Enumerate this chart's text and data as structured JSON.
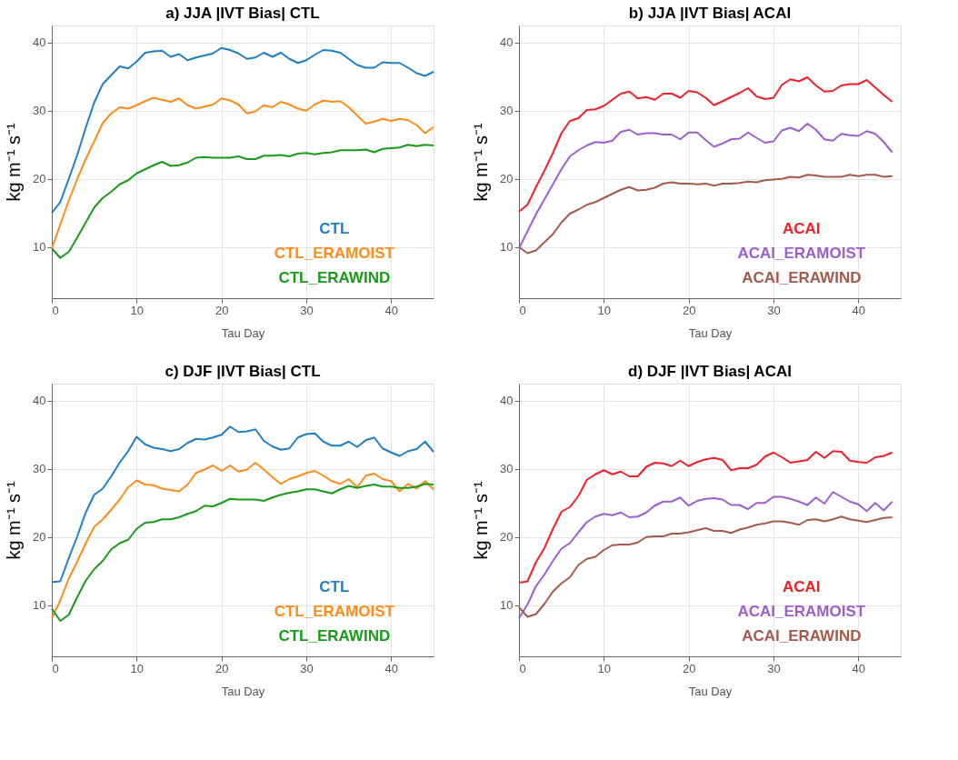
{
  "chart_data": [
    {
      "type": "line",
      "title": "a) JJA |IVT Bias| CTL",
      "xlabel": "Tau Day",
      "ylabel": "kg m⁻¹ s⁻¹",
      "xlim": [
        0,
        45
      ],
      "xticks": [
        0,
        10,
        20,
        30,
        40
      ],
      "ylim": [
        2.5,
        42.5
      ],
      "yticks": [
        10,
        20,
        30,
        40
      ],
      "grid": true,
      "legend": "bottom right",
      "x": [
        0,
        1,
        2,
        3,
        4,
        5,
        6,
        7,
        8,
        9,
        10,
        11,
        12,
        13,
        14,
        15,
        16,
        17,
        18,
        19,
        20,
        21,
        22,
        23,
        24,
        25,
        26,
        27,
        28,
        29,
        30,
        31,
        32,
        33,
        34,
        35,
        36,
        37,
        38,
        39,
        40,
        41,
        42,
        43,
        44,
        45
      ],
      "series": [
        {
          "name": "CTL",
          "color": "#1f7fc4",
          "values": [
            15,
            16.6,
            20,
            23.5,
            27.5,
            31.2,
            33.9,
            35.2,
            36.5,
            36.2,
            37.2,
            38.5,
            38.7,
            38.8,
            37.9,
            38.3,
            37.4,
            37.8,
            38.1,
            38.4,
            39.2,
            38.9,
            38.4,
            37.6,
            37.8,
            38.5,
            37.9,
            38.5,
            37.6,
            37.0,
            37.4,
            38.2,
            38.9,
            38.8,
            38.5,
            37.6,
            36.7,
            36.3,
            36.3,
            37.1,
            37.0,
            37.0,
            36.3,
            35.5,
            35.1,
            35.7
          ]
        },
        {
          "name": "CTL_ERAMOIST",
          "color": "#ff8c1a",
          "values": [
            9.8,
            13.3,
            16.8,
            20,
            22.9,
            25.5,
            28.2,
            29.6,
            30.5,
            30.3,
            30.8,
            31.4,
            31.9,
            31.6,
            31.3,
            31.8,
            30.8,
            30.3,
            30.6,
            30.9,
            31.8,
            31.5,
            30.9,
            29.6,
            29.9,
            30.8,
            30.5,
            31.3,
            30.9,
            30.3,
            30.0,
            30.9,
            31.5,
            31.3,
            31.4,
            30.5,
            29.3,
            28.1,
            28.4,
            28.8,
            28.5,
            28.8,
            28.6,
            27.9,
            26.7,
            27.6
          ]
        },
        {
          "name": "CTL_ERAWIND",
          "color": "#1a9a1a",
          "values": [
            9.8,
            8.4,
            9.3,
            11.4,
            13.6,
            15.8,
            17.2,
            18.1,
            19.2,
            19.8,
            20.8,
            21.4,
            22.0,
            22.5,
            21.9,
            22.0,
            22.4,
            23.1,
            23.2,
            23.1,
            23.1,
            23.1,
            23.3,
            22.9,
            22.9,
            23.4,
            23.4,
            23.5,
            23.3,
            23.7,
            23.8,
            23.6,
            23.8,
            23.9,
            24.2,
            24.2,
            24.2,
            24.3,
            23.9,
            24.4,
            24.5,
            24.6,
            25.0,
            24.8,
            25.0,
            24.9
          ]
        }
      ]
    },
    {
      "type": "line",
      "title": "b) JJA |IVT Bias| ACAI",
      "xlabel": "Tau Day",
      "ylabel": "kg m⁻¹ s⁻¹",
      "xlim": [
        0,
        45
      ],
      "xticks": [
        0,
        10,
        20,
        30,
        40
      ],
      "ylim": [
        2.5,
        42.5
      ],
      "yticks": [
        10,
        20,
        30,
        40
      ],
      "grid": true,
      "legend": "bottom right",
      "x": [
        0,
        1,
        2,
        3,
        4,
        5,
        6,
        7,
        8,
        9,
        10,
        11,
        12,
        13,
        14,
        15,
        16,
        17,
        18,
        19,
        20,
        21,
        22,
        23,
        24,
        25,
        26,
        27,
        28,
        29,
        30,
        31,
        32,
        33,
        34,
        35,
        36,
        37,
        38,
        39,
        40,
        41,
        42,
        43,
        44
      ],
      "series": [
        {
          "name": "ACAI",
          "color": "#f0202a",
          "values": [
            15.2,
            16.2,
            18.8,
            21.2,
            23.8,
            26.7,
            28.5,
            28.9,
            30.1,
            30.2,
            30.7,
            31.6,
            32.5,
            32.8,
            31.8,
            32.0,
            31.6,
            32.5,
            32.5,
            31.9,
            32.9,
            32.7,
            31.9,
            30.8,
            31.4,
            32.0,
            32.6,
            33.3,
            32.1,
            31.7,
            31.9,
            33.8,
            34.6,
            34.3,
            34.9,
            33.7,
            32.8,
            32.9,
            33.7,
            33.9,
            33.9,
            34.5,
            33.4,
            32.3,
            31.3
          ]
        },
        {
          "name": "ACAI_ERAMOIST",
          "color": "#9b5fd0",
          "values": [
            9.8,
            12.3,
            14.8,
            17,
            19.2,
            21.4,
            23.3,
            24.2,
            24.9,
            25.4,
            25.3,
            25.6,
            26.9,
            27.2,
            26.5,
            26.7,
            26.7,
            26.5,
            26.5,
            25.8,
            26.8,
            26.8,
            25.7,
            24.7,
            25.2,
            25.8,
            25.9,
            26.8,
            26.0,
            25.3,
            25.5,
            27.1,
            27.5,
            27.0,
            28.1,
            27.2,
            25.8,
            25.6,
            26.6,
            26.4,
            26.3,
            27.0,
            26.6,
            25.4,
            23.9
          ]
        },
        {
          "name": "ACAI_ERAWIND",
          "color": "#a65a4c",
          "values": [
            10,
            9.1,
            9.5,
            10.7,
            11.9,
            13.6,
            14.9,
            15.5,
            16.2,
            16.6,
            17.2,
            17.8,
            18.4,
            18.8,
            18.3,
            18.4,
            18.7,
            19.3,
            19.5,
            19.3,
            19.3,
            19.2,
            19.3,
            19.0,
            19.3,
            19.3,
            19.4,
            19.6,
            19.5,
            19.8,
            19.9,
            20.0,
            20.3,
            20.2,
            20.6,
            20.5,
            20.3,
            20.3,
            20.3,
            20.6,
            20.4,
            20.6,
            20.6,
            20.3,
            20.4
          ]
        }
      ]
    },
    {
      "type": "line",
      "title": "c) DJF |IVT Bias| CTL",
      "xlabel": "Tau Day",
      "ylabel": "kg m⁻¹ s⁻¹",
      "xlim": [
        0,
        45
      ],
      "xticks": [
        0,
        10,
        20,
        30,
        40
      ],
      "ylim": [
        2.5,
        42.5
      ],
      "yticks": [
        10,
        20,
        30,
        40
      ],
      "grid": true,
      "legend": "bottom right",
      "x": [
        0,
        1,
        2,
        3,
        4,
        5,
        6,
        7,
        8,
        9,
        10,
        11,
        12,
        13,
        14,
        15,
        16,
        17,
        18,
        19,
        20,
        21,
        22,
        23,
        24,
        25,
        26,
        27,
        28,
        29,
        30,
        31,
        32,
        33,
        34,
        35,
        36,
        37,
        38,
        39,
        40,
        41,
        42,
        43,
        44,
        45
      ],
      "series": [
        {
          "name": "CTL",
          "color": "#1f7fc4",
          "values": [
            13.4,
            13.5,
            16.9,
            20.1,
            23.6,
            26.2,
            27.1,
            28.9,
            30.9,
            32.6,
            34.7,
            33.6,
            33.1,
            32.9,
            32.6,
            32.9,
            33.8,
            34.4,
            34.3,
            34.6,
            35.0,
            36.2,
            35.4,
            35.5,
            35.8,
            34.1,
            33.3,
            32.8,
            33.0,
            34.6,
            35.1,
            35.2,
            34.0,
            33.4,
            33.4,
            34.0,
            33.2,
            34.2,
            34.6,
            33.0,
            32.4,
            31.9,
            32.6,
            32.9,
            34.0,
            32.5
          ]
        },
        {
          "name": "CTL_ERAMOIST",
          "color": "#ff8c1a",
          "values": [
            8.1,
            10.7,
            13.9,
            16.4,
            19.1,
            21.5,
            22.6,
            24.0,
            25.5,
            27.3,
            28.3,
            27.7,
            27.6,
            27.1,
            26.9,
            26.7,
            27.7,
            29.4,
            29.9,
            30.5,
            29.7,
            30.5,
            29.6,
            29.9,
            30.9,
            29.9,
            28.8,
            27.8,
            28.5,
            28.9,
            29.4,
            29.7,
            29.0,
            28.2,
            27.8,
            28.5,
            27.3,
            29.0,
            29.3,
            28.5,
            28.2,
            26.7,
            27.8,
            27.1,
            28.2,
            27.0
          ]
        },
        {
          "name": "CTL_ERAWIND",
          "color": "#1a9a1a",
          "values": [
            9.5,
            7.7,
            8.6,
            11.2,
            13.6,
            15.3,
            16.5,
            18.2,
            19.1,
            19.6,
            21.2,
            22.1,
            22.2,
            22.6,
            22.6,
            22.9,
            23.4,
            23.8,
            24.6,
            24.5,
            25.0,
            25.6,
            25.5,
            25.5,
            25.5,
            25.3,
            25.8,
            26.2,
            26.5,
            26.7,
            27.0,
            27.0,
            26.7,
            26.4,
            27.0,
            27.5,
            27.2,
            27.5,
            27.7,
            27.4,
            27.4,
            27.2,
            27.2,
            27.4,
            27.8,
            27.7
          ]
        }
      ]
    },
    {
      "type": "line",
      "title": "d) DJF |IVT Bias| ACAI",
      "xlabel": "Tau Day",
      "ylabel": "kg m⁻¹ s⁻¹",
      "xlim": [
        0,
        45
      ],
      "xticks": [
        0,
        10,
        20,
        30,
        40
      ],
      "ylim": [
        2.5,
        42.5
      ],
      "yticks": [
        10,
        20,
        30,
        40
      ],
      "grid": true,
      "legend": "bottom right",
      "x": [
        0,
        1,
        2,
        3,
        4,
        5,
        6,
        7,
        8,
        9,
        10,
        11,
        12,
        13,
        14,
        15,
        16,
        17,
        18,
        19,
        20,
        21,
        22,
        23,
        24,
        25,
        26,
        27,
        28,
        29,
        30,
        31,
        32,
        33,
        34,
        35,
        36,
        37,
        38,
        39,
        40,
        41,
        42,
        43,
        44
      ],
      "series": [
        {
          "name": "ACAI",
          "color": "#f0202a",
          "values": [
            13.3,
            13.5,
            16.3,
            18.4,
            21.2,
            23.7,
            24.4,
            26.0,
            28.4,
            29.2,
            29.8,
            29.2,
            29.6,
            28.9,
            28.9,
            30.3,
            30.9,
            30.8,
            30.4,
            31.2,
            30.4,
            31.0,
            31.4,
            31.6,
            31.3,
            29.8,
            30.1,
            30.1,
            30.6,
            31.8,
            32.4,
            31.7,
            30.9,
            31.1,
            31.3,
            32.5,
            31.6,
            32.6,
            32.5,
            31.2,
            31.0,
            30.9,
            31.7,
            31.9,
            32.4
          ]
        },
        {
          "name": "ACAI_ERAMOIST",
          "color": "#9b5fd0",
          "values": [
            8.1,
            10.1,
            12.8,
            14.5,
            16.5,
            18.3,
            19.1,
            20.7,
            22.2,
            23.0,
            23.4,
            23.2,
            23.6,
            22.9,
            23.0,
            23.6,
            24.6,
            25.2,
            25.2,
            25.8,
            24.6,
            25.3,
            25.6,
            25.7,
            25.5,
            24.7,
            24.7,
            24.1,
            25.0,
            25.0,
            25.9,
            25.9,
            25.6,
            25.2,
            24.7,
            25.8,
            24.9,
            26.6,
            25.9,
            25.2,
            24.8,
            23.8,
            25.0,
            23.9,
            25.2
          ]
        },
        {
          "name": "ACAI_ERAWIND",
          "color": "#a65a4c",
          "values": [
            9.7,
            8.3,
            8.7,
            10.2,
            12.0,
            13.2,
            14.1,
            15.9,
            16.8,
            17.1,
            18.1,
            18.8,
            18.9,
            18.9,
            19.2,
            20.0,
            20.1,
            20.1,
            20.5,
            20.5,
            20.7,
            21.0,
            21.3,
            20.9,
            20.9,
            20.6,
            21.1,
            21.4,
            21.8,
            22.0,
            22.3,
            22.3,
            22.1,
            21.8,
            22.5,
            22.6,
            22.3,
            22.6,
            23.0,
            22.6,
            22.4,
            22.2,
            22.5,
            22.8,
            22.9
          ]
        }
      ]
    }
  ]
}
